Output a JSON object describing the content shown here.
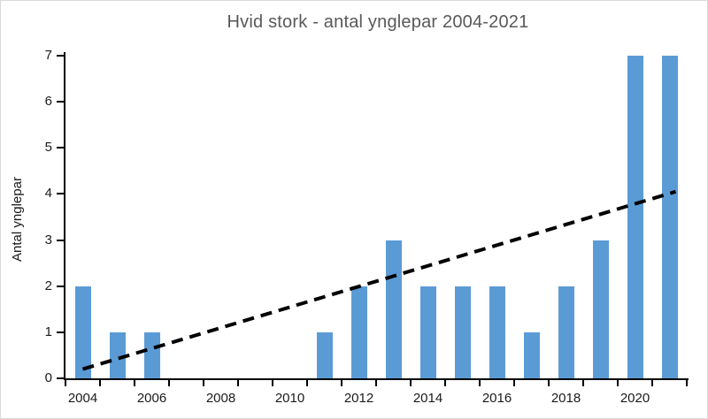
{
  "chart_data": {
    "type": "bar",
    "title": "Hvid stork - antal ynglepar 2004-2021",
    "xlabel": "",
    "ylabel": "Antal ynglepar",
    "categories": [
      "2004",
      "2005",
      "2006",
      "2007",
      "2008",
      "2009",
      "2010",
      "2011",
      "2012",
      "2013",
      "2014",
      "2015",
      "2016",
      "2017",
      "2018",
      "2019",
      "2020",
      "2021"
    ],
    "values": [
      2,
      1,
      1,
      0,
      0,
      0,
      0,
      1,
      2,
      3,
      2,
      2,
      2,
      1,
      2,
      3,
      7,
      7
    ],
    "ylim": [
      0,
      7
    ],
    "y_ticks": [
      0,
      1,
      2,
      3,
      4,
      5,
      6,
      7
    ],
    "x_tick_labels": [
      "2004",
      "2006",
      "2008",
      "2010",
      "2012",
      "2014",
      "2016",
      "2018",
      "2020"
    ],
    "grid": false,
    "legend": false,
    "bar_color": "#5B9BD5",
    "trendline": {
      "type": "linear",
      "style": "dashed",
      "color": "#000000",
      "start": {
        "category": "2004",
        "value": 0.2
      },
      "end": {
        "category": "2021",
        "value": 4.05
      }
    }
  },
  "colors": {
    "title_text": "#595959",
    "axis_text": "#1a1a1a",
    "axis_line": "#000000",
    "bar": "#5B9BD5",
    "border": "#d9d9d9",
    "background": "#ffffff"
  }
}
